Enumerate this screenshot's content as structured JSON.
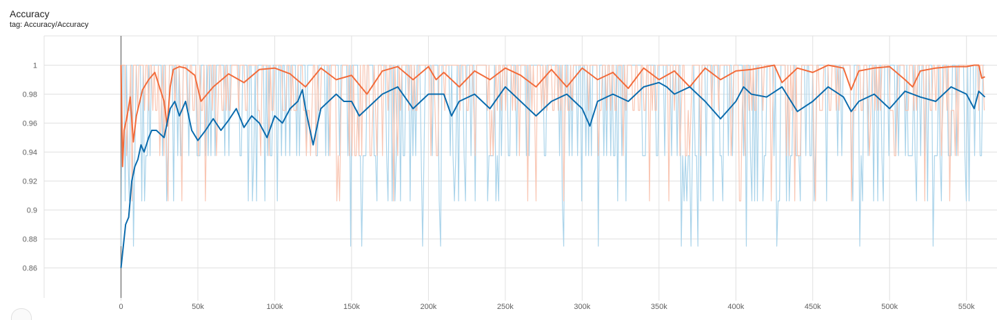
{
  "header": {
    "title": "Accuracy",
    "subtitle": "tag: Accuracy/Accuracy"
  },
  "colors": {
    "orange_smoothed": "#f26b3a",
    "orange_raw": "#f9c6b3",
    "blue_smoothed": "#0a6bad",
    "blue_raw": "#a9d3ea",
    "grid": "#e0e0e0",
    "zero_line": "#808080"
  },
  "chart_data": {
    "type": "line",
    "title": "Accuracy",
    "xlim": [
      -50000,
      570000
    ],
    "ylim": [
      0.84,
      1.02
    ],
    "grid": true,
    "x_ticks": [
      0,
      50000,
      100000,
      150000,
      200000,
      250000,
      300000,
      350000,
      400000,
      450000,
      500000,
      550000
    ],
    "x_tick_labels": [
      "0",
      "50k",
      "100k",
      "150k",
      "200k",
      "250k",
      "300k",
      "350k",
      "400k",
      "450k",
      "500k",
      "550k"
    ],
    "y_ticks": [
      0.86,
      0.88,
      0.9,
      0.92,
      0.94,
      0.96,
      0.98,
      1
    ],
    "y_tick_labels": [
      "0.86",
      "0.88",
      "0.9",
      "0.92",
      "0.94",
      "0.96",
      "0.98",
      "1"
    ],
    "series": [
      {
        "color_key": "orange_smoothed",
        "x": [
          0,
          1000,
          2000,
          4000,
          6000,
          8000,
          10000,
          14000,
          18000,
          22000,
          25000,
          28000,
          30000,
          32000,
          34000,
          38000,
          42000,
          48000,
          52000,
          60000,
          70000,
          80000,
          90000,
          100000,
          110000,
          120000,
          130000,
          140000,
          150000,
          160000,
          170000,
          180000,
          190000,
          200000,
          205000,
          210000,
          220000,
          230000,
          240000,
          250000,
          260000,
          270000,
          280000,
          290000,
          300000,
          310000,
          320000,
          330000,
          340000,
          350000,
          360000,
          370000,
          380000,
          390000,
          400000,
          410000,
          420000,
          425000,
          430000,
          440000,
          450000,
          460000,
          470000,
          475000,
          480000,
          490000,
          500000,
          510000,
          515000,
          520000,
          530000,
          540000,
          550000,
          555000,
          558000,
          560000,
          562000
        ],
        "y": [
          1.0,
          0.93,
          0.955,
          0.965,
          0.978,
          0.947,
          0.965,
          0.983,
          0.99,
          0.995,
          0.985,
          0.975,
          0.958,
          0.985,
          0.997,
          0.999,
          0.998,
          0.993,
          0.975,
          0.985,
          0.994,
          0.988,
          0.997,
          0.998,
          0.994,
          0.985,
          0.998,
          0.99,
          0.993,
          0.98,
          0.996,
          0.999,
          0.99,
          0.999,
          0.99,
          0.995,
          0.985,
          0.996,
          0.99,
          0.998,
          0.993,
          0.985,
          0.997,
          0.985,
          0.998,
          0.99,
          0.995,
          0.984,
          0.998,
          0.99,
          0.996,
          0.985,
          0.998,
          0.99,
          0.996,
          0.997,
          0.999,
          1.0,
          0.988,
          0.998,
          0.995,
          1.0,
          0.998,
          0.983,
          0.996,
          0.998,
          0.999,
          0.99,
          0.985,
          0.996,
          0.998,
          0.999,
          0.999,
          1.0,
          1.0,
          0.991,
          0.992
        ]
      },
      {
        "color_key": "blue_smoothed",
        "x": [
          0,
          1000,
          3000,
          5000,
          7000,
          9000,
          11000,
          13000,
          15000,
          18000,
          20000,
          23000,
          25000,
          28000,
          30000,
          32000,
          35000,
          38000,
          42000,
          46000,
          50000,
          55000,
          60000,
          65000,
          70000,
          75000,
          80000,
          85000,
          90000,
          95000,
          100000,
          105000,
          110000,
          115000,
          118000,
          120000,
          125000,
          130000,
          135000,
          140000,
          145000,
          150000,
          155000,
          160000,
          165000,
          170000,
          180000,
          190000,
          200000,
          210000,
          215000,
          220000,
          230000,
          240000,
          250000,
          260000,
          270000,
          280000,
          290000,
          300000,
          305000,
          310000,
          320000,
          330000,
          340000,
          350000,
          355000,
          360000,
          370000,
          380000,
          390000,
          400000,
          405000,
          410000,
          420000,
          430000,
          440000,
          450000,
          460000,
          470000,
          475000,
          480000,
          490000,
          500000,
          510000,
          520000,
          530000,
          540000,
          550000,
          555000,
          558000,
          562000
        ],
        "y": [
          0.86,
          0.87,
          0.89,
          0.895,
          0.92,
          0.93,
          0.935,
          0.945,
          0.94,
          0.95,
          0.955,
          0.955,
          0.953,
          0.95,
          0.96,
          0.97,
          0.975,
          0.965,
          0.975,
          0.955,
          0.948,
          0.955,
          0.963,
          0.955,
          0.962,
          0.97,
          0.957,
          0.965,
          0.96,
          0.95,
          0.965,
          0.96,
          0.97,
          0.975,
          0.983,
          0.97,
          0.945,
          0.97,
          0.975,
          0.98,
          0.975,
          0.975,
          0.965,
          0.97,
          0.975,
          0.98,
          0.985,
          0.97,
          0.98,
          0.98,
          0.965,
          0.975,
          0.98,
          0.97,
          0.985,
          0.975,
          0.965,
          0.975,
          0.98,
          0.97,
          0.958,
          0.975,
          0.98,
          0.975,
          0.985,
          0.988,
          0.985,
          0.98,
          0.985,
          0.975,
          0.963,
          0.975,
          0.985,
          0.98,
          0.978,
          0.985,
          0.968,
          0.975,
          0.985,
          0.978,
          0.968,
          0.975,
          0.98,
          0.97,
          0.982,
          0.978,
          0.975,
          0.985,
          0.98,
          0.97,
          0.982,
          0.978
        ]
      }
    ]
  }
}
